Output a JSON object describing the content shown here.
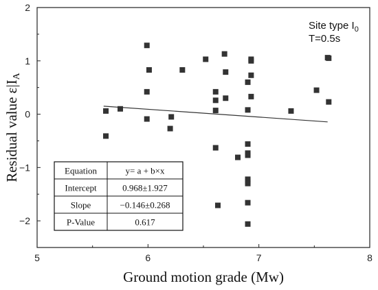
{
  "chart_data": {
    "type": "scatter",
    "xlabel": "Ground motion grade (Mw)",
    "ylabel_main": "Residual value ε|I",
    "ylabel_sub": "A",
    "xlim": [
      5,
      8
    ],
    "ylim": [
      -2.5,
      2
    ],
    "xticks": [
      "5",
      "6",
      "7",
      "8"
    ],
    "yticks": [
      "2",
      "1",
      "0",
      "−1",
      "−2"
    ],
    "annotation": {
      "line1_main": "Site type I",
      "line1_sub": "0",
      "line2": "T=0.5s"
    },
    "points": [
      {
        "x": 5.62,
        "y": 0.06
      },
      {
        "x": 5.62,
        "y": -0.41
      },
      {
        "x": 5.75,
        "y": 0.1
      },
      {
        "x": 5.99,
        "y": 1.29
      },
      {
        "x": 6.01,
        "y": 0.83
      },
      {
        "x": 5.99,
        "y": 0.42
      },
      {
        "x": 5.99,
        "y": -0.09
      },
      {
        "x": 6.21,
        "y": -0.05
      },
      {
        "x": 6.2,
        "y": -0.27
      },
      {
        "x": 6.31,
        "y": 0.83
      },
      {
        "x": 6.52,
        "y": 1.03
      },
      {
        "x": 6.61,
        "y": 0.42
      },
      {
        "x": 6.61,
        "y": 0.26
      },
      {
        "x": 6.61,
        "y": 0.07
      },
      {
        "x": 6.61,
        "y": -0.63
      },
      {
        "x": 6.63,
        "y": -1.71
      },
      {
        "x": 6.69,
        "y": 1.13
      },
      {
        "x": 6.7,
        "y": 0.79
      },
      {
        "x": 6.7,
        "y": 0.3
      },
      {
        "x": 6.81,
        "y": -0.81
      },
      {
        "x": 6.9,
        "y": 0.6
      },
      {
        "x": 6.9,
        "y": 0.08
      },
      {
        "x": 6.9,
        "y": -0.56
      },
      {
        "x": 6.9,
        "y": -0.73
      },
      {
        "x": 6.9,
        "y": -0.77
      },
      {
        "x": 6.9,
        "y": -1.22
      },
      {
        "x": 6.9,
        "y": -1.26
      },
      {
        "x": 6.9,
        "y": -1.3
      },
      {
        "x": 6.9,
        "y": -1.66
      },
      {
        "x": 6.9,
        "y": -2.06
      },
      {
        "x": 6.93,
        "y": 1.03
      },
      {
        "x": 6.93,
        "y": 1.0
      },
      {
        "x": 6.93,
        "y": 0.73
      },
      {
        "x": 6.93,
        "y": 0.33
      },
      {
        "x": 7.29,
        "y": 0.06
      },
      {
        "x": 7.52,
        "y": 0.45
      },
      {
        "x": 7.62,
        "y": 1.06
      },
      {
        "x": 7.63,
        "y": 1.05
      },
      {
        "x": 7.63,
        "y": 0.23
      }
    ],
    "fit": {
      "intercept": 0.968,
      "slope": -0.146,
      "x_range": [
        5.6,
        7.62
      ]
    },
    "stats_table": [
      [
        "Equation",
        "y= a + b×x"
      ],
      [
        "Intercept",
        "0.968±1.927"
      ],
      [
        "Slope",
        "−0.146±0.268"
      ],
      [
        "P-Value",
        "0.617"
      ]
    ]
  }
}
